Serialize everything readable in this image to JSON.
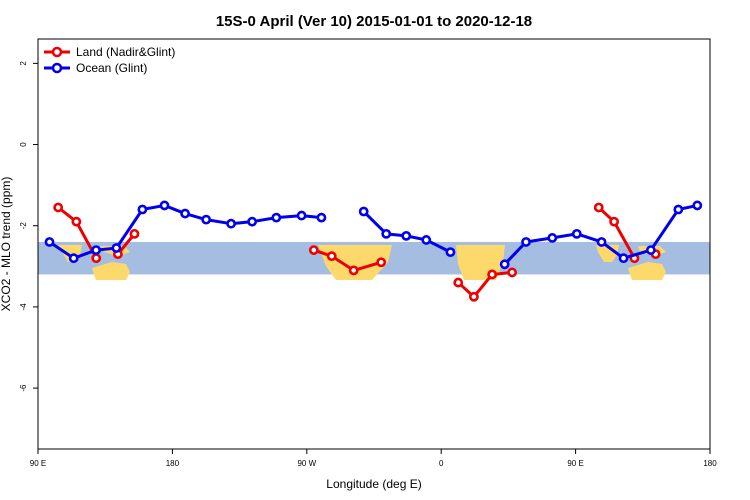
{
  "chart_data": {
    "type": "line",
    "title": "15S-0 April (Ver 10)   2015-01-01 to 2020-12-18",
    "xlabel": "Longitude (deg E)",
    "ylabel": "XCO2 - MLO trend (ppm)",
    "xlim": [
      90,
      540
    ],
    "ylim": [
      -7.5,
      2.6
    ],
    "grid": false,
    "legend_position": "top-left",
    "x_ticks": [
      {
        "value": 90,
        "label": "90 E"
      },
      {
        "value": 180,
        "label": "180"
      },
      {
        "value": 270,
        "label": "90 W"
      },
      {
        "value": 360,
        "label": "0"
      },
      {
        "value": 450,
        "label": "90 E"
      },
      {
        "value": 540,
        "label": "180"
      }
    ],
    "y_ticks": [
      {
        "value": 2,
        "label": "2"
      },
      {
        "value": 0,
        "label": "0"
      },
      {
        "value": -2,
        "label": "-2"
      },
      {
        "value": -4,
        "label": "-4"
      },
      {
        "value": -6,
        "label": "-6"
      }
    ],
    "background_band": {
      "y_top": -2.4,
      "y_bottom": -3.2,
      "ocean_color": "#a5bde0",
      "land_color": "#fdd96b"
    },
    "series": [
      {
        "name": "Land (Nadir&Glint)",
        "color": "#ee0000",
        "segments": [
          [
            [
              103.5,
              -1.55
            ],
            [
              115.7,
              -1.9
            ],
            [
              129,
              -2.8
            ]
          ],
          [
            [
              143.5,
              -2.7
            ],
            [
              154.6,
              -2.2
            ]
          ],
          [
            [
              274.7,
              -2.6
            ],
            [
              286.7,
              -2.75
            ],
            [
              301.4,
              -3.1
            ],
            [
              319.8,
              -2.9
            ]
          ],
          [
            [
              371.4,
              -3.4
            ],
            [
              381.9,
              -3.75
            ],
            [
              394.1,
              -3.2
            ],
            [
              407.5,
              -3.15
            ]
          ],
          [
            [
              465.5,
              -1.55
            ],
            [
              475.8,
              -1.9
            ],
            [
              489.4,
              -2.8
            ]
          ],
          [
            [
              503.6,
              -2.7
            ]
          ]
        ]
      },
      {
        "name": "Ocean (Glint)",
        "color": "#0000ee",
        "segments": [
          [
            [
              97.7,
              -2.4
            ],
            [
              113.9,
              -2.8
            ],
            [
              128.9,
              -2.6
            ],
            [
              142.5,
              -2.55
            ],
            [
              159.9,
              -1.6
            ],
            [
              174.7,
              -1.5
            ],
            [
              188.5,
              -1.7
            ],
            [
              202.6,
              -1.85
            ],
            [
              219.3,
              -1.95
            ],
            [
              233.4,
              -1.9
            ],
            [
              249.6,
              -1.8
            ],
            [
              266.5,
              -1.75
            ],
            [
              279.8,
              -1.8
            ]
          ],
          [
            [
              308.1,
              -1.65
            ],
            [
              323.2,
              -2.2
            ],
            [
              336.6,
              -2.25
            ],
            [
              350,
              -2.35
            ],
            [
              366.2,
              -2.65
            ]
          ],
          [
            [
              402.5,
              -2.95
            ],
            [
              416.8,
              -2.4
            ],
            [
              434.4,
              -2.3
            ],
            [
              450.8,
              -2.2
            ],
            [
              467.4,
              -2.4
            ],
            [
              482.1,
              -2.8
            ],
            [
              500.4,
              -2.6
            ],
            [
              518.8,
              -1.6
            ],
            [
              531.5,
              -1.5
            ]
          ]
        ]
      }
    ]
  }
}
